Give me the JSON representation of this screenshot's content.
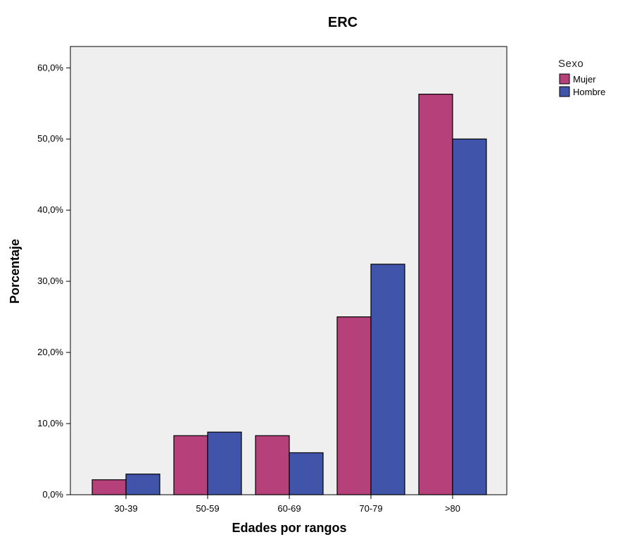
{
  "chart_data": {
    "type": "bar",
    "title": "ERC",
    "xlabel": "Edades por rangos",
    "ylabel": "Porcentaje",
    "categories": [
      "30-39",
      "50-59",
      "60-69",
      "70-79",
      ">80"
    ],
    "series": [
      {
        "name": "Mujer",
        "color": "#b5407a",
        "values": [
          2.1,
          8.3,
          8.3,
          25.0,
          56.3
        ]
      },
      {
        "name": "Hombre",
        "color": "#4055aa",
        "values": [
          2.9,
          8.8,
          5.9,
          32.4,
          50.0
        ]
      }
    ],
    "ylim": [
      0,
      63
    ],
    "yticks": [
      0,
      10,
      20,
      30,
      40,
      50,
      60
    ],
    "ytick_labels": [
      "0,0%",
      "10,0%",
      "20,0%",
      "30,0%",
      "40,0%",
      "50,0%",
      "60,0%"
    ],
    "legend": {
      "title": "Sexo",
      "placement": "top-right outside"
    },
    "plot_background": "#efefef",
    "grid": false
  }
}
